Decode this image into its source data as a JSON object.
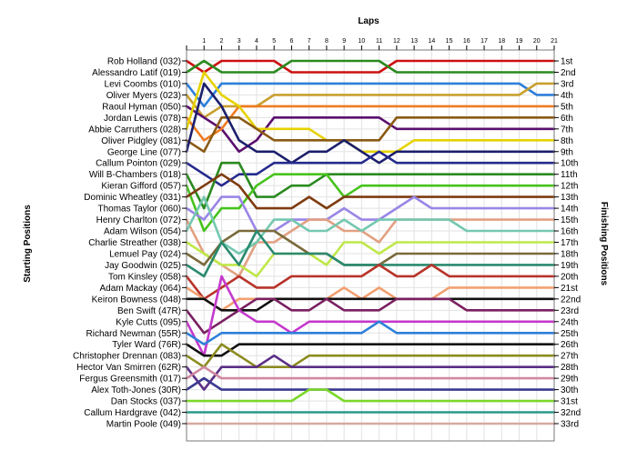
{
  "chart_data": {
    "type": "line",
    "title": "",
    "xlabel": "Laps",
    "ylabel_left": "Starting Positions",
    "ylabel_right": "Finishing Positions",
    "x_ticks": [
      1,
      2,
      3,
      4,
      5,
      6,
      7,
      8,
      9,
      10,
      11,
      12,
      13,
      14,
      15,
      16,
      17,
      18,
      19,
      20,
      21
    ],
    "x_range": [
      0,
      21
    ],
    "y_range": [
      1,
      33
    ],
    "y_inverted": true,
    "grid": true,
    "starting_labels": [
      "Rob Holland (032)",
      "Alessandro Latif (019)",
      "Levi Coombs (010)",
      "Oliver Myers (023)",
      "Raoul Hyman (050)",
      "Jordan Lewis (078)",
      "Abbie Carruthers (028)",
      "Oliver Pidgley (081)",
      "George Line (077)",
      "Callum Pointon (029)",
      "Will B-Chambers (018)",
      "Kieran Gifford (057)",
      "Dominic Wheatley (031)",
      "Thomas Taylor (060)",
      "Henry Charlton (072)",
      "Adam Wilson (054)",
      "Charlie Streather (038)",
      "Lemuel Pay (024)",
      "Jay Goodwin (025)",
      "Tom Kinsley (058)",
      "Adam Mackay (064)",
      "Keiron Bowness (048)",
      "Ben Swift (47R)",
      "Kyle Cutts (095)",
      "Richard Newman (55R)",
      "Tyler Ward (76R)",
      "Christopher Drennan (083)",
      "Hector Van Smirren (62R)",
      "Fergus Greensmith (017)",
      "Alex Toth-Jones (30R)",
      "Dan Stocks (037)",
      "Callum Hardgrave (042)",
      "Martin Poole (049)"
    ],
    "finishing_labels": [
      "1st",
      "2nd",
      "3rd",
      "4th",
      "5th",
      "6th",
      "7th",
      "8th",
      "9th",
      "10th",
      "11th",
      "12th",
      "13th",
      "14th",
      "15th",
      "16th",
      "17th",
      "18th",
      "19th",
      "20th",
      "21st",
      "22nd",
      "23rd",
      "24th",
      "25th",
      "26th",
      "27th",
      "28th",
      "29th",
      "30th",
      "31st",
      "32nd",
      "33rd"
    ],
    "series": [
      {
        "color": "#cc1111",
        "positions": [
          1,
          2,
          1,
          1,
          1,
          1,
          2,
          2,
          2,
          2,
          2,
          2,
          1,
          1,
          1,
          1,
          1,
          1,
          1,
          1,
          1,
          1
        ]
      },
      {
        "color": "#2a8a1e",
        "positions": [
          2,
          1,
          2,
          2,
          2,
          2,
          1,
          1,
          1,
          1,
          1,
          1,
          2,
          2,
          2,
          2,
          2,
          2,
          2,
          2,
          2,
          2
        ]
      },
      {
        "color": "#2e7fd9",
        "positions": [
          3,
          5,
          3,
          3,
          3,
          3,
          3,
          3,
          3,
          3,
          3,
          3,
          3,
          3,
          3,
          3,
          3,
          3,
          3,
          3,
          4,
          4
        ]
      },
      {
        "color": "#c8a030",
        "positions": [
          4,
          6,
          5,
          5,
          5,
          4,
          4,
          4,
          4,
          4,
          4,
          4,
          4,
          4,
          4,
          4,
          4,
          4,
          4,
          4,
          3,
          3
        ]
      },
      {
        "color": "#5a0e6e",
        "positions": [
          5,
          6,
          7,
          9,
          8,
          6,
          6,
          6,
          6,
          6,
          6,
          6,
          7,
          7,
          7,
          7,
          7,
          7,
          7,
          7,
          7,
          7
        ]
      },
      {
        "color": "#ed7c22",
        "positions": [
          6,
          8,
          7,
          5,
          5,
          5,
          5,
          5,
          5,
          5,
          5,
          5,
          5,
          5,
          5,
          5,
          5,
          5,
          5,
          5,
          5,
          5
        ]
      },
      {
        "color": "#e6d200",
        "positions": [
          7,
          2,
          4,
          5,
          7,
          7,
          7,
          7,
          8,
          8,
          9,
          9,
          9,
          8,
          8,
          8,
          8,
          8,
          8,
          8,
          8,
          8
        ]
      },
      {
        "color": "#8a5a14",
        "positions": [
          8,
          9,
          6,
          6,
          7,
          8,
          8,
          8,
          8,
          8,
          8,
          8,
          6,
          6,
          6,
          6,
          6,
          6,
          6,
          6,
          6,
          6
        ]
      },
      {
        "color": "#1b1e6b",
        "positions": [
          9,
          3,
          5,
          8,
          9,
          9,
          10,
          9,
          9,
          8,
          9,
          10,
          9,
          9,
          9,
          9,
          9,
          9,
          9,
          9,
          9,
          9
        ]
      },
      {
        "color": "#252a8c",
        "positions": [
          10,
          11,
          12,
          11,
          11,
          10,
          10,
          10,
          10,
          10,
          10,
          9,
          10,
          10,
          10,
          10,
          10,
          10,
          10,
          10,
          10,
          10
        ]
      },
      {
        "color": "#2a8a1e",
        "positions": [
          11,
          14,
          10,
          10,
          13,
          13,
          12,
          12,
          11,
          11,
          11,
          11,
          11,
          11,
          11,
          11,
          11,
          11,
          11,
          11,
          11,
          11
        ]
      },
      {
        "color": "#46c31c",
        "positions": [
          12,
          16,
          14,
          14,
          12,
          11,
          11,
          11,
          11,
          13,
          12,
          12,
          12,
          12,
          12,
          12,
          12,
          12,
          12,
          12,
          12,
          12
        ]
      },
      {
        "color": "#7e3c10",
        "positions": [
          13,
          12,
          11,
          12,
          14,
          14,
          14,
          13,
          14,
          13,
          13,
          13,
          13,
          13,
          13,
          13,
          13,
          13,
          13,
          13,
          13,
          13
        ]
      },
      {
        "color": "#9a86e6",
        "positions": [
          14,
          15,
          13,
          13,
          16,
          16,
          15,
          15,
          15,
          14,
          15,
          15,
          14,
          13,
          14,
          14,
          14,
          14,
          14,
          14,
          14,
          14
        ]
      },
      {
        "color": "#e2a082",
        "positions": [
          15,
          18,
          19,
          20,
          17,
          17,
          16,
          15,
          15,
          16,
          16,
          17,
          15,
          15,
          15,
          15,
          15,
          15,
          15,
          15,
          15,
          15
        ]
      },
      {
        "color": "#74c8b0",
        "positions": [
          16,
          13,
          17,
          18,
          17,
          15,
          15,
          16,
          16,
          15,
          16,
          15,
          15,
          15,
          15,
          15,
          16,
          16,
          16,
          16,
          16,
          16
        ]
      },
      {
        "color": "#bfe84a",
        "positions": [
          17,
          18,
          19,
          19,
          20,
          18,
          18,
          18,
          19,
          17,
          17,
          18,
          17,
          17,
          17,
          17,
          17,
          17,
          17,
          17,
          17,
          17
        ]
      },
      {
        "color": "#7a6a3a",
        "positions": [
          18,
          19,
          17,
          16,
          16,
          16,
          17,
          18,
          18,
          19,
          19,
          19,
          18,
          18,
          18,
          18,
          18,
          18,
          18,
          18,
          18,
          18
        ]
      },
      {
        "color": "#2a8a70",
        "positions": [
          19,
          20,
          17,
          19,
          16,
          18,
          18,
          18,
          18,
          19,
          19,
          19,
          19,
          19,
          19,
          19,
          19,
          19,
          19,
          19,
          19,
          19
        ]
      },
      {
        "color": "#b8342a",
        "positions": [
          20,
          22,
          21,
          20,
          21,
          21,
          20,
          20,
          20,
          20,
          20,
          19,
          20,
          20,
          19,
          20,
          20,
          20,
          20,
          20,
          20,
          20
        ]
      },
      {
        "color": "#f2a070",
        "positions": [
          21,
          22,
          23,
          22,
          22,
          22,
          22,
          22,
          22,
          21,
          22,
          21,
          22,
          22,
          22,
          21,
          21,
          21,
          21,
          21,
          21,
          21
        ]
      },
      {
        "color": "#101010",
        "positions": [
          22,
          22,
          23,
          23,
          23,
          22,
          22,
          22,
          22,
          22,
          22,
          22,
          22,
          22,
          22,
          22,
          22,
          22,
          22,
          22,
          22,
          22
        ]
      },
      {
        "color": "#7a2060",
        "positions": [
          23,
          25,
          24,
          23,
          22,
          22,
          23,
          23,
          22,
          23,
          23,
          23,
          22,
          22,
          22,
          22,
          23,
          23,
          23,
          23,
          23,
          23
        ]
      },
      {
        "color": "#c438cc",
        "positions": [
          24,
          27,
          20,
          23,
          24,
          24,
          25,
          24,
          24,
          24,
          24,
          24,
          24,
          24,
          24,
          24,
          24,
          24,
          24,
          24,
          24,
          24
        ]
      },
      {
        "color": "#2e7fd9",
        "positions": [
          25,
          26,
          25,
          25,
          25,
          25,
          25,
          25,
          25,
          25,
          25,
          24,
          25,
          25,
          25,
          25,
          25,
          25,
          25,
          25,
          25,
          25
        ]
      },
      {
        "color": "#101010",
        "positions": [
          26,
          27,
          27,
          26,
          26,
          26,
          26,
          26,
          26,
          26,
          26,
          26,
          26,
          26,
          26,
          26,
          26,
          26,
          26,
          26,
          26,
          26
        ]
      },
      {
        "color": "#8b8b20",
        "positions": [
          27,
          28,
          26,
          27,
          28,
          28,
          28,
          27,
          27,
          27,
          27,
          27,
          27,
          27,
          27,
          27,
          27,
          27,
          27,
          27,
          27,
          27
        ]
      },
      {
        "color": "#5b2e86",
        "positions": [
          28,
          30,
          28,
          28,
          28,
          27,
          28,
          28,
          28,
          28,
          28,
          28,
          28,
          28,
          28,
          28,
          28,
          28,
          28,
          28,
          28,
          28
        ]
      },
      {
        "color": "#d088a0",
        "positions": [
          29,
          28,
          29,
          29,
          29,
          29,
          29,
          29,
          29,
          29,
          29,
          29,
          29,
          29,
          29,
          29,
          29,
          29,
          29,
          29,
          29,
          29
        ]
      },
      {
        "color": "#3a3a90",
        "positions": [
          30,
          29,
          30,
          30,
          30,
          30,
          30,
          30,
          30,
          30,
          30,
          30,
          30,
          30,
          30,
          30,
          30,
          30,
          30,
          30,
          30,
          30
        ]
      },
      {
        "color": "#7bd82a",
        "positions": [
          31,
          31,
          31,
          31,
          31,
          31,
          31,
          30,
          30,
          31,
          31,
          31,
          31,
          31,
          31,
          31,
          31,
          31,
          31,
          31,
          31,
          31
        ]
      },
      {
        "color": "#2a9a88",
        "positions": [
          32,
          32,
          32,
          32,
          32,
          32,
          32,
          32,
          32,
          32,
          32,
          32,
          32,
          32,
          32,
          32,
          32,
          32,
          32,
          32,
          32,
          32
        ]
      },
      {
        "color": "#d8a8a0",
        "positions": [
          33,
          33,
          33,
          33,
          33,
          33,
          33,
          33,
          33,
          33,
          33,
          33,
          33,
          33,
          33,
          33,
          33,
          33,
          33,
          33,
          33,
          33
        ]
      }
    ]
  }
}
